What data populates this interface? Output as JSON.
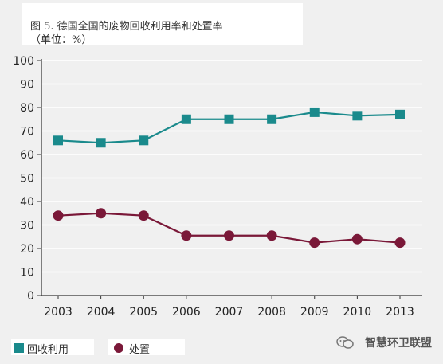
{
  "chart_data": {
    "type": "line",
    "title": "图 5. 德国全国的废物回收利用率和处置率",
    "subtitle": "（单位：%）",
    "categories": [
      "2003",
      "2004",
      "2005",
      "2006",
      "2007",
      "2008",
      "2009",
      "2010",
      "2013"
    ],
    "ylim": [
      0,
      100
    ],
    "yticks": [
      0,
      10,
      20,
      30,
      40,
      50,
      60,
      70,
      80,
      90,
      100
    ],
    "grid": true,
    "legend_position": "bottom-left",
    "series": [
      {
        "name": "回收利用",
        "marker": "square",
        "color": "#1a8a8c",
        "values": [
          66,
          65,
          66,
          75,
          75,
          75,
          78,
          76.5,
          77
        ]
      },
      {
        "name": "处置",
        "marker": "circle",
        "color": "#7a1838",
        "values": [
          34,
          35,
          34,
          25.5,
          25.5,
          25.5,
          22.5,
          24,
          22.5
        ]
      }
    ]
  },
  "watermark": {
    "text": "智慧环卫联盟",
    "icon": "wechat-icon"
  }
}
